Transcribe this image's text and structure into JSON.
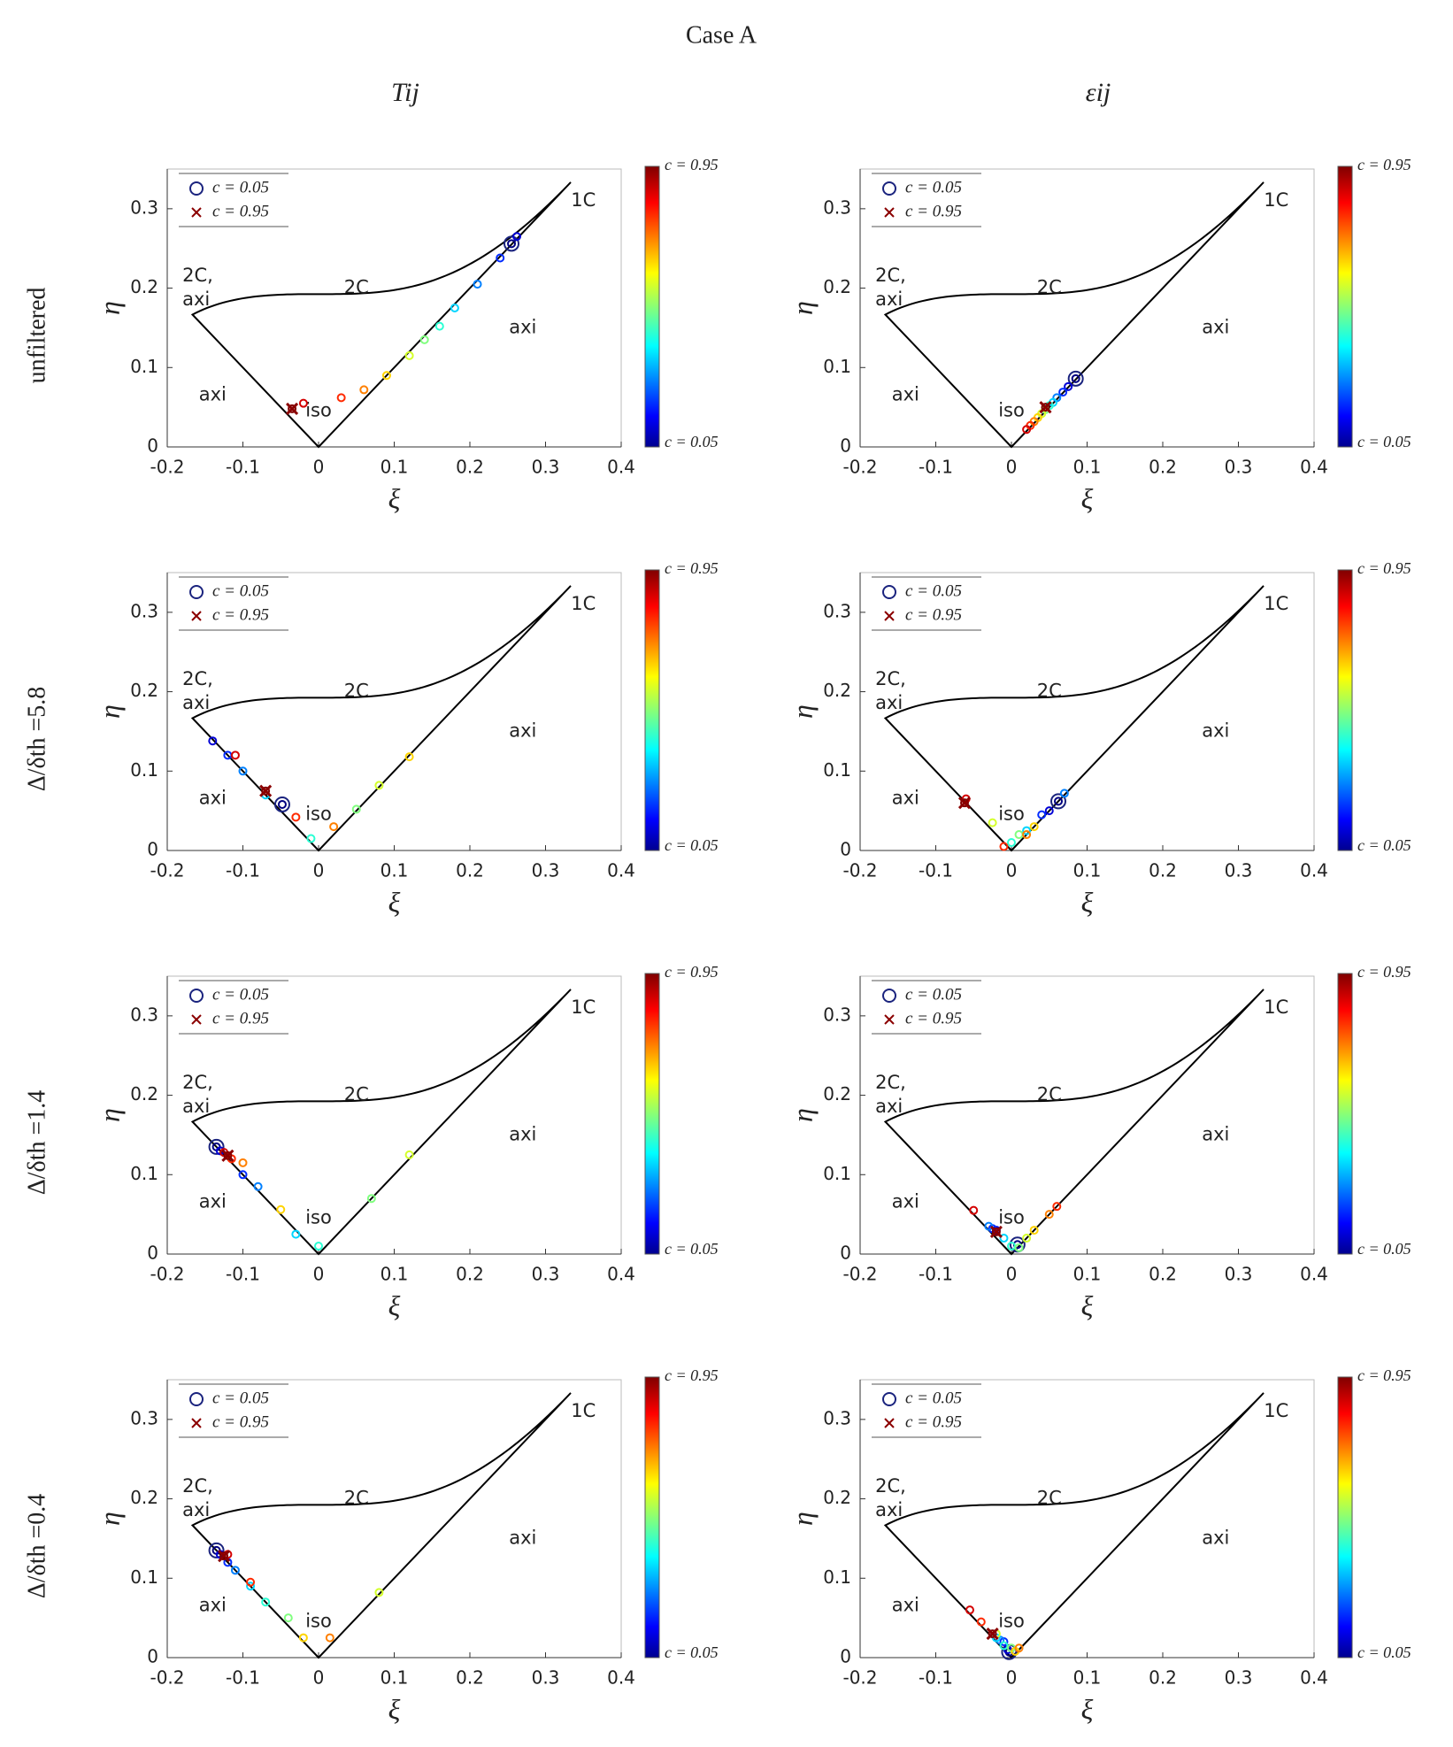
{
  "title": "Case A",
  "column_titles": [
    "Tij",
    "εij"
  ],
  "row_labels": [
    "unfiltered",
    "Δ/δth =5.8",
    "Δ/δth =1.4",
    "Δ/δth =0.4"
  ],
  "chart_data": [
    {
      "type": "scatter",
      "xlabel": "ξ",
      "ylabel": "η",
      "xlim": [
        -0.2,
        0.4
      ],
      "ylim": [
        0,
        0.35
      ],
      "xticks": [
        -0.2,
        -0.1,
        0,
        0.1,
        0.2,
        0.3,
        0.4
      ],
      "yticks": [
        0,
        0.1,
        0.2,
        0.3
      ],
      "annotations": [
        "1C",
        "2C",
        "2C,",
        "axi",
        "axi",
        "axi",
        "iso"
      ],
      "legend": {
        "corner": "upper left",
        "entries": [
          "c = 0.05",
          "c = 0.95"
        ]
      },
      "colorbar": {
        "colormap": "jet",
        "clim": [
          0.05,
          0.95
        ],
        "labels": [
          "c = 0.95",
          "c = 0.05"
        ]
      },
      "x": [
        0.255,
        0.262,
        0.24,
        0.21,
        0.18,
        0.16,
        0.14,
        0.12,
        0.09,
        0.06,
        0.03,
        -0.02,
        -0.035
      ],
      "y": [
        0.256,
        0.265,
        0.238,
        0.205,
        0.175,
        0.152,
        0.135,
        0.115,
        0.09,
        0.072,
        0.062,
        0.055,
        0.048
      ],
      "c": [
        0.05,
        0.125,
        0.2,
        0.275,
        0.35,
        0.425,
        0.5,
        0.575,
        0.65,
        0.725,
        0.8,
        0.875,
        0.95
      ]
    },
    {
      "type": "scatter",
      "xlabel": "ξ",
      "ylabel": "η",
      "xlim": [
        -0.2,
        0.4
      ],
      "ylim": [
        0,
        0.35
      ],
      "xticks": [
        -0.2,
        -0.1,
        0,
        0.1,
        0.2,
        0.3,
        0.4
      ],
      "yticks": [
        0,
        0.1,
        0.2,
        0.3
      ],
      "annotations": [
        "1C",
        "2C",
        "2C,",
        "axi",
        "axi",
        "axi",
        "iso"
      ],
      "legend": {
        "corner": "upper left",
        "entries": [
          "c = 0.05",
          "c = 0.95"
        ]
      },
      "colorbar": {
        "colormap": "jet",
        "clim": [
          0.05,
          0.95
        ],
        "labels": [
          "c = 0.95",
          "c = 0.05"
        ]
      },
      "x": [
        0.085,
        0.075,
        0.068,
        0.06,
        0.055,
        0.05,
        0.045,
        0.04,
        0.035,
        0.03,
        0.025,
        0.02,
        0.045
      ],
      "y": [
        0.086,
        0.076,
        0.069,
        0.062,
        0.056,
        0.052,
        0.047,
        0.042,
        0.037,
        0.032,
        0.027,
        0.022,
        0.05
      ],
      "c": [
        0.05,
        0.125,
        0.2,
        0.275,
        0.35,
        0.425,
        0.5,
        0.575,
        0.65,
        0.725,
        0.8,
        0.875,
        0.95
      ]
    },
    {
      "type": "scatter",
      "xlabel": "ξ",
      "ylabel": "η",
      "xlim": [
        -0.2,
        0.4
      ],
      "ylim": [
        0,
        0.35
      ],
      "xticks": [
        -0.2,
        -0.1,
        0,
        0.1,
        0.2,
        0.3,
        0.4
      ],
      "yticks": [
        0,
        0.1,
        0.2,
        0.3
      ],
      "annotations": [
        "1C",
        "2C",
        "2C,",
        "axi",
        "axi",
        "axi",
        "iso"
      ],
      "legend": {
        "corner": "upper left",
        "entries": [
          "c = 0.05",
          "c = 0.95"
        ]
      },
      "colorbar": {
        "colormap": "jet",
        "clim": [
          0.05,
          0.95
        ],
        "labels": [
          "c = 0.95",
          "c = 0.05"
        ]
      },
      "x": [
        -0.048,
        -0.14,
        -0.12,
        -0.1,
        -0.07,
        -0.01,
        0.05,
        0.08,
        0.12,
        0.02,
        -0.03,
        -0.11,
        -0.07
      ],
      "y": [
        0.058,
        0.138,
        0.12,
        0.1,
        0.07,
        0.015,
        0.052,
        0.082,
        0.118,
        0.03,
        0.042,
        0.12,
        0.075
      ],
      "c": [
        0.05,
        0.125,
        0.2,
        0.275,
        0.35,
        0.425,
        0.5,
        0.575,
        0.65,
        0.725,
        0.8,
        0.875,
        0.95
      ]
    },
    {
      "type": "scatter",
      "xlabel": "ξ",
      "ylabel": "η",
      "xlim": [
        -0.2,
        0.4
      ],
      "ylim": [
        0,
        0.35
      ],
      "xticks": [
        -0.2,
        -0.1,
        0,
        0.1,
        0.2,
        0.3,
        0.4
      ],
      "yticks": [
        0,
        0.1,
        0.2,
        0.3
      ],
      "annotations": [
        "1C",
        "2C",
        "2C,",
        "axi",
        "axi",
        "axi",
        "iso"
      ],
      "legend": {
        "corner": "upper left",
        "entries": [
          "c = 0.05",
          "c = 0.95"
        ]
      },
      "colorbar": {
        "colormap": "jet",
        "clim": [
          0.05,
          0.95
        ],
        "labels": [
          "c = 0.95",
          "c = 0.05"
        ]
      },
      "x": [
        0.062,
        0.05,
        0.04,
        0.07,
        0.02,
        0.0,
        0.01,
        -0.025,
        0.03,
        0.02,
        -0.01,
        -0.06,
        -0.062
      ],
      "y": [
        0.062,
        0.05,
        0.045,
        0.072,
        0.025,
        0.01,
        0.02,
        0.035,
        0.03,
        0.02,
        0.005,
        0.065,
        0.06
      ],
      "c": [
        0.05,
        0.125,
        0.2,
        0.275,
        0.35,
        0.425,
        0.5,
        0.575,
        0.65,
        0.725,
        0.8,
        0.875,
        0.95
      ]
    },
    {
      "type": "scatter",
      "xlabel": "ξ",
      "ylabel": "η",
      "xlim": [
        -0.2,
        0.4
      ],
      "ylim": [
        0,
        0.35
      ],
      "xticks": [
        -0.2,
        -0.1,
        0,
        0.1,
        0.2,
        0.3,
        0.4
      ],
      "yticks": [
        0,
        0.1,
        0.2,
        0.3
      ],
      "annotations": [
        "1C",
        "2C",
        "2C,",
        "axi",
        "axi",
        "axi",
        "iso"
      ],
      "legend": {
        "corner": "upper left",
        "entries": [
          "c = 0.05",
          "c = 0.95"
        ]
      },
      "colorbar": {
        "colormap": "jet",
        "clim": [
          0.05,
          0.95
        ],
        "labels": [
          "c = 0.95",
          "c = 0.05"
        ]
      },
      "x": [
        -0.135,
        -0.13,
        -0.1,
        -0.08,
        -0.03,
        0.0,
        0.07,
        0.12,
        -0.05,
        -0.1,
        -0.115,
        -0.125,
        -0.12
      ],
      "y": [
        0.135,
        0.13,
        0.1,
        0.085,
        0.025,
        0.01,
        0.07,
        0.125,
        0.056,
        0.115,
        0.12,
        0.128,
        0.124
      ],
      "c": [
        0.05,
        0.125,
        0.2,
        0.275,
        0.35,
        0.425,
        0.5,
        0.575,
        0.65,
        0.725,
        0.8,
        0.875,
        0.95
      ]
    },
    {
      "type": "scatter",
      "xlabel": "ξ",
      "ylabel": "η",
      "xlim": [
        -0.2,
        0.4
      ],
      "ylim": [
        0,
        0.35
      ],
      "xticks": [
        -0.2,
        -0.1,
        0,
        0.1,
        0.2,
        0.3,
        0.4
      ],
      "yticks": [
        0,
        0.1,
        0.2,
        0.3
      ],
      "annotations": [
        "1C",
        "2C",
        "2C,",
        "axi",
        "axi",
        "axi",
        "iso"
      ],
      "legend": {
        "corner": "upper left",
        "entries": [
          "c = 0.05",
          "c = 0.95"
        ]
      },
      "colorbar": {
        "colormap": "jet",
        "clim": [
          0.05,
          0.95
        ],
        "labels": [
          "c = 0.95",
          "c = 0.05"
        ]
      },
      "x": [
        0.008,
        -0.02,
        -0.025,
        -0.03,
        -0.01,
        0.0,
        0.01,
        0.02,
        0.03,
        0.05,
        0.06,
        -0.05,
        -0.02
      ],
      "y": [
        0.012,
        0.03,
        0.032,
        0.035,
        0.02,
        0.01,
        0.008,
        0.02,
        0.03,
        0.05,
        0.06,
        0.055,
        0.028
      ],
      "c": [
        0.05,
        0.125,
        0.2,
        0.275,
        0.35,
        0.425,
        0.5,
        0.575,
        0.65,
        0.725,
        0.8,
        0.875,
        0.95
      ]
    },
    {
      "type": "scatter",
      "xlabel": "ξ",
      "ylabel": "η",
      "xlim": [
        -0.2,
        0.4
      ],
      "ylim": [
        0,
        0.35
      ],
      "xticks": [
        -0.2,
        -0.1,
        0,
        0.1,
        0.2,
        0.3,
        0.4
      ],
      "yticks": [
        0,
        0.1,
        0.2,
        0.3
      ],
      "annotations": [
        "1C",
        "2C",
        "2C,",
        "axi",
        "axi",
        "axi",
        "iso"
      ],
      "legend": {
        "corner": "upper left",
        "entries": [
          "c = 0.05",
          "c = 0.95"
        ]
      },
      "colorbar": {
        "colormap": "jet",
        "clim": [
          0.05,
          0.95
        ],
        "labels": [
          "c = 0.95",
          "c = 0.05"
        ]
      },
      "x": [
        -0.135,
        -0.13,
        -0.12,
        -0.11,
        -0.09,
        -0.07,
        -0.04,
        0.08,
        -0.02,
        0.015,
        -0.09,
        -0.12,
        -0.125
      ],
      "y": [
        0.135,
        0.13,
        0.12,
        0.11,
        0.09,
        0.07,
        0.05,
        0.082,
        0.025,
        0.025,
        0.095,
        0.13,
        0.128
      ],
      "c": [
        0.05,
        0.125,
        0.2,
        0.275,
        0.35,
        0.425,
        0.5,
        0.575,
        0.65,
        0.725,
        0.8,
        0.875,
        0.95
      ]
    },
    {
      "type": "scatter",
      "xlabel": "ξ",
      "ylabel": "η",
      "xlim": [
        -0.2,
        0.4
      ],
      "ylim": [
        0,
        0.35
      ],
      "xticks": [
        -0.2,
        -0.1,
        0,
        0.1,
        0.2,
        0.3,
        0.4
      ],
      "yticks": [
        0,
        0.1,
        0.2,
        0.3
      ],
      "annotations": [
        "1C",
        "2C",
        "2C,",
        "axi",
        "axi",
        "axi",
        "iso"
      ],
      "legend": {
        "corner": "upper left",
        "entries": [
          "c = 0.05",
          "c = 0.95"
        ]
      },
      "colorbar": {
        "colormap": "jet",
        "clim": [
          0.05,
          0.95
        ],
        "labels": [
          "c = 0.95",
          "c = 0.05"
        ]
      },
      "x": [
        -0.003,
        -0.005,
        -0.01,
        -0.015,
        -0.02,
        -0.01,
        0.0,
        -0.02,
        0.005,
        0.01,
        -0.04,
        -0.055,
        -0.025
      ],
      "y": [
        0.007,
        0.01,
        0.02,
        0.022,
        0.025,
        0.015,
        0.012,
        0.03,
        0.008,
        0.012,
        0.045,
        0.06,
        0.03
      ],
      "c": [
        0.05,
        0.125,
        0.2,
        0.275,
        0.35,
        0.425,
        0.5,
        0.575,
        0.65,
        0.725,
        0.8,
        0.875,
        0.95
      ]
    }
  ]
}
